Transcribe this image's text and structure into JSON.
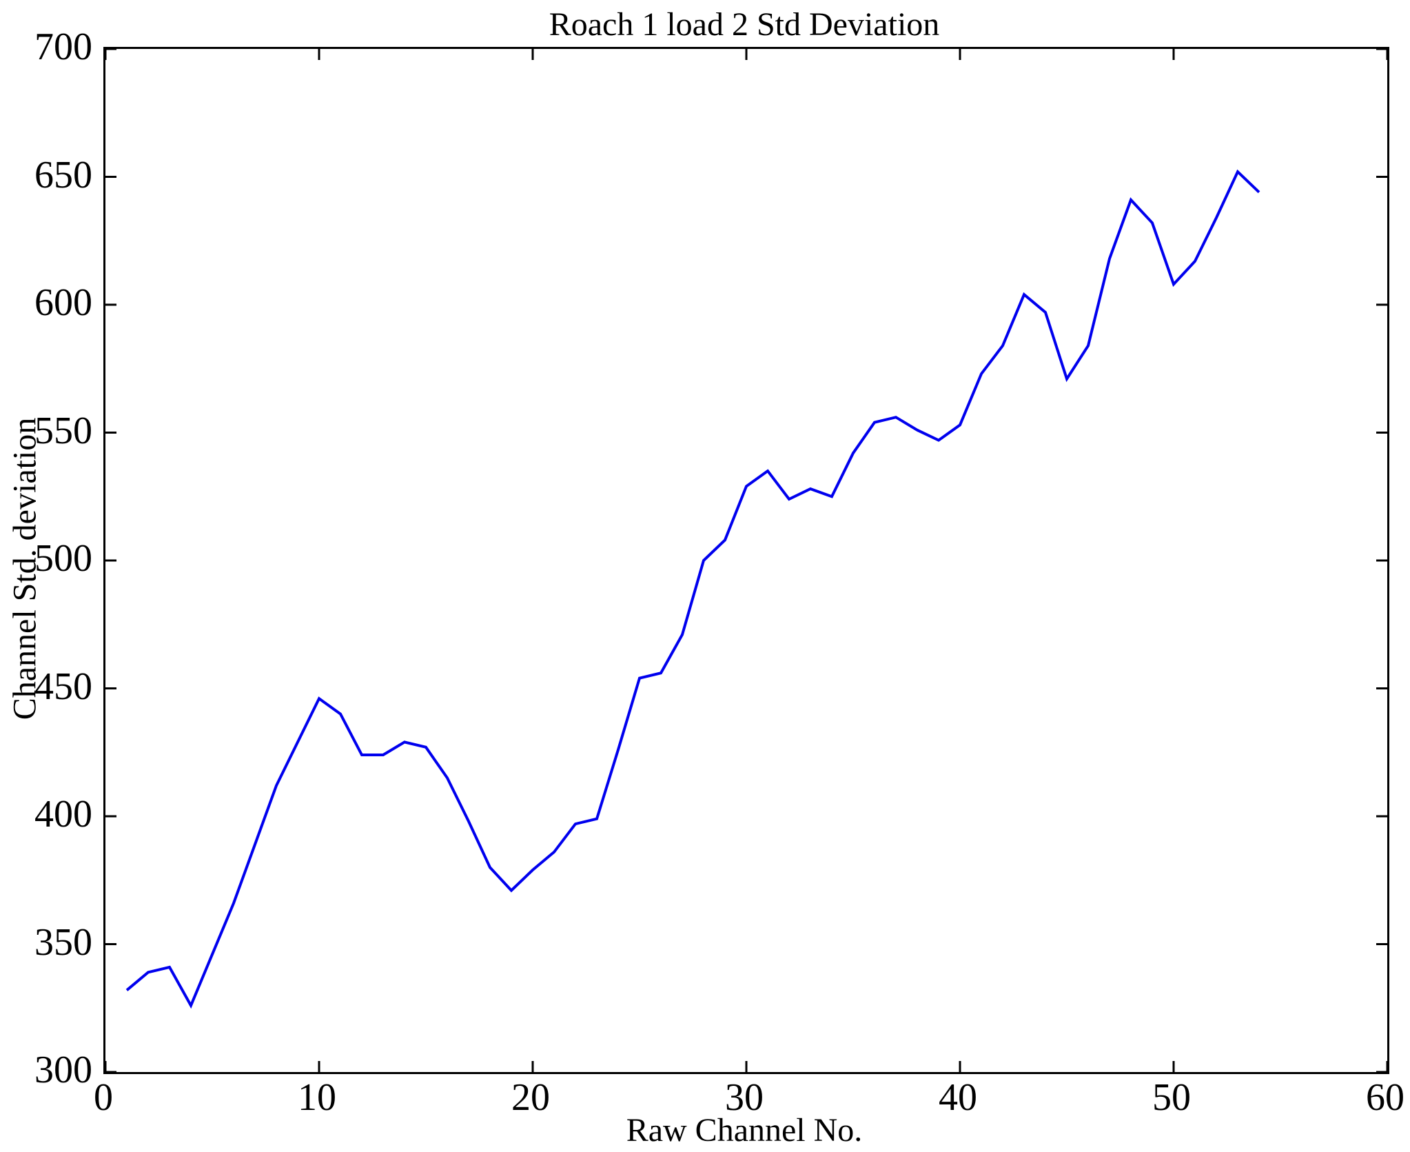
{
  "figure": {
    "title": "Roach 1 load 2 Std Deviation",
    "xlabel": "Raw Channel No.",
    "ylabel": "Channel Std. deviation"
  },
  "colors": {
    "line": "#0000EE",
    "axis": "#000000",
    "background": "#FFFFFF"
  },
  "chart_data": {
    "type": "line",
    "title": "Roach 1 load 2 Std Deviation",
    "xlabel": "Raw Channel No.",
    "ylabel": "Channel Std. deviation",
    "xlim": [
      0,
      60
    ],
    "ylim": [
      300,
      700
    ],
    "xticks": [
      0,
      10,
      20,
      30,
      40,
      50,
      60
    ],
    "yticks": [
      300,
      350,
      400,
      450,
      500,
      550,
      600,
      650,
      700
    ],
    "grid": false,
    "legend_position": "none",
    "tick_style": "inward-all-sides",
    "series": [
      {
        "name": "channel-std-deviation",
        "x": [
          1,
          2,
          3,
          4,
          5,
          6,
          7,
          8,
          9,
          10,
          11,
          12,
          13,
          14,
          15,
          16,
          17,
          18,
          19,
          20,
          21,
          22,
          23,
          24,
          25,
          26,
          27,
          28,
          29,
          30,
          31,
          32,
          33,
          34,
          35,
          36,
          37,
          38,
          39,
          40,
          41,
          42,
          43,
          44,
          45,
          46,
          47,
          48,
          49,
          50,
          51,
          52,
          53,
          54
        ],
        "y": [
          332,
          339,
          341,
          326,
          346,
          366,
          389,
          412,
          429,
          446,
          440,
          424,
          424,
          429,
          427,
          415,
          398,
          380,
          371,
          379,
          386,
          397,
          399,
          426,
          454,
          456,
          471,
          500,
          508,
          529,
          535,
          524,
          528,
          525,
          542,
          554,
          556,
          551,
          547,
          553,
          573,
          584,
          604,
          597,
          571,
          584,
          618,
          641,
          632,
          608,
          617,
          634,
          652,
          644
        ]
      }
    ]
  }
}
